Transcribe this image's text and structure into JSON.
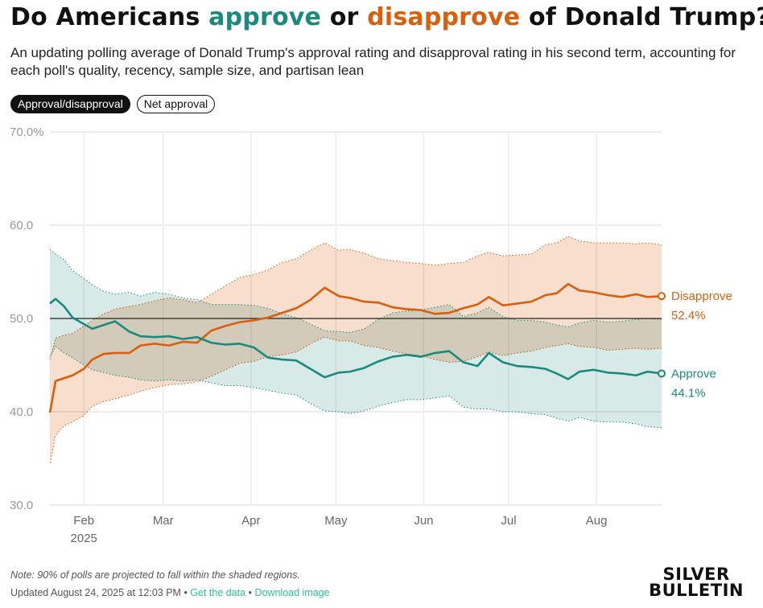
{
  "header": {
    "title_prefix": "Do Americans ",
    "title_approve": "approve",
    "title_or": " or ",
    "title_disapprove": "disapprove",
    "title_suffix": " of Donald Trump?",
    "subtitle": "An updating polling average of Donald Trump's approval rating and disapproval rating in his second term, accounting for each poll's quality, recency, sample size, and partisan lean"
  },
  "toggles": [
    {
      "label": "Approval/disapproval",
      "active": true
    },
    {
      "label": "Net approval",
      "active": false
    }
  ],
  "footer": {
    "note": "Note: 90% of polls are projected to fall within the shaded regions.",
    "updated": "Updated August 24, 2025 at 12:03 PM",
    "sep": " • ",
    "get_data": "Get the data",
    "download": "Download image"
  },
  "logo": {
    "line1": "SILVER",
    "line2": "BULLETIN"
  },
  "chart_data": {
    "type": "line",
    "ylim": [
      30,
      70
    ],
    "yticks": [
      "70.0%",
      "60.0",
      "50.0",
      "40.0",
      "30.0"
    ],
    "x_range": [
      "2025-01-20",
      "2025-08-24"
    ],
    "month_ticks": [
      {
        "label": "Feb",
        "date": "2025-02-01"
      },
      {
        "label": "Mar",
        "date": "2025-03-01"
      },
      {
        "label": "Apr",
        "date": "2025-04-01"
      },
      {
        "label": "May",
        "date": "2025-05-01"
      },
      {
        "label": "Jun",
        "date": "2025-06-01"
      },
      {
        "label": "Jul",
        "date": "2025-07-01"
      },
      {
        "label": "Aug",
        "date": "2025-08-01"
      }
    ],
    "year_label": "2025",
    "reference_line": 50,
    "colors": {
      "approve": "#1a8a7e",
      "disapprove": "#d95f0e",
      "approve_band": "#cfe5e1",
      "disapprove_band": "#f7d6c0"
    },
    "series": [
      {
        "name": "Disapprove",
        "end_label": "52.4%",
        "points": [
          [
            "2025-01-20",
            39.9,
            34.3,
            45.6
          ],
          [
            "2025-01-22",
            43.3,
            37.5,
            47.9
          ],
          [
            "2025-01-25",
            43.6,
            38.5,
            48.2
          ],
          [
            "2025-01-28",
            43.9,
            38.9,
            48.4
          ],
          [
            "2025-02-01",
            44.6,
            39.6,
            49.2
          ],
          [
            "2025-02-04",
            45.6,
            40.6,
            49.8
          ],
          [
            "2025-02-08",
            46.2,
            41.1,
            50.5
          ],
          [
            "2025-02-12",
            46.3,
            41.4,
            51.0
          ],
          [
            "2025-02-17",
            46.3,
            41.8,
            51.3
          ],
          [
            "2025-02-21",
            47.1,
            42.2,
            51.5
          ],
          [
            "2025-02-26",
            47.3,
            42.6,
            51.9
          ],
          [
            "2025-03-03",
            47.1,
            42.9,
            52.2
          ],
          [
            "2025-03-08",
            47.5,
            43.0,
            52.0
          ],
          [
            "2025-03-13",
            47.4,
            43.2,
            51.7
          ],
          [
            "2025-03-18",
            48.7,
            43.8,
            52.6
          ],
          [
            "2025-03-23",
            49.2,
            44.5,
            53.5
          ],
          [
            "2025-03-28",
            49.6,
            45.2,
            54.4
          ],
          [
            "2025-04-02",
            49.8,
            45.4,
            54.7
          ],
          [
            "2025-04-07",
            50.1,
            45.9,
            55.2
          ],
          [
            "2025-04-12",
            50.6,
            46.1,
            56.0
          ],
          [
            "2025-04-17",
            51.1,
            46.4,
            56.4
          ],
          [
            "2025-04-22",
            52.0,
            47.3,
            57.3
          ],
          [
            "2025-04-27",
            53.3,
            48.0,
            58.1
          ],
          [
            "2025-05-02",
            52.4,
            47.6,
            57.3
          ],
          [
            "2025-05-06",
            52.2,
            47.6,
            57.4
          ],
          [
            "2025-05-11",
            51.8,
            47.1,
            57.0
          ],
          [
            "2025-05-16",
            51.7,
            46.9,
            56.4
          ],
          [
            "2025-05-21",
            51.2,
            46.5,
            56.2
          ],
          [
            "2025-05-26",
            51.0,
            46.2,
            56.0
          ],
          [
            "2025-05-31",
            50.9,
            46.0,
            55.9
          ],
          [
            "2025-06-05",
            50.5,
            45.6,
            55.7
          ],
          [
            "2025-06-10",
            50.6,
            45.3,
            55.9
          ],
          [
            "2025-06-15",
            51.1,
            45.4,
            56.0
          ],
          [
            "2025-06-20",
            51.5,
            45.9,
            56.7
          ],
          [
            "2025-06-24",
            52.3,
            46.4,
            57.1
          ],
          [
            "2025-06-29",
            51.4,
            46.0,
            56.7
          ],
          [
            "2025-07-04",
            51.6,
            46.3,
            56.8
          ],
          [
            "2025-07-09",
            51.8,
            46.5,
            56.9
          ],
          [
            "2025-07-14",
            52.5,
            46.9,
            57.9
          ],
          [
            "2025-07-18",
            52.7,
            47.1,
            58.1
          ],
          [
            "2025-07-22",
            53.7,
            47.3,
            58.8
          ],
          [
            "2025-07-26",
            53.0,
            47.0,
            58.3
          ],
          [
            "2025-07-31",
            52.8,
            46.9,
            58.1
          ],
          [
            "2025-08-05",
            52.5,
            46.6,
            58.1
          ],
          [
            "2025-08-10",
            52.3,
            46.7,
            58.1
          ],
          [
            "2025-08-15",
            52.6,
            46.8,
            58.0
          ],
          [
            "2025-08-19",
            52.3,
            46.7,
            58.1
          ],
          [
            "2025-08-24",
            52.4,
            46.8,
            57.9
          ]
        ]
      },
      {
        "name": "Approve",
        "end_label": "44.1%",
        "points": [
          [
            "2025-01-20",
            51.6,
            45.8,
            57.4
          ],
          [
            "2025-01-22",
            52.1,
            47.0,
            56.9
          ],
          [
            "2025-01-25",
            51.3,
            46.3,
            56.3
          ],
          [
            "2025-01-28",
            50.1,
            45.8,
            55.1
          ],
          [
            "2025-02-01",
            49.4,
            45.0,
            54.3
          ],
          [
            "2025-02-04",
            48.9,
            44.5,
            53.6
          ],
          [
            "2025-02-08",
            49.3,
            44.2,
            52.9
          ],
          [
            "2025-02-12",
            49.7,
            43.9,
            52.6
          ],
          [
            "2025-02-17",
            48.6,
            43.7,
            52.8
          ],
          [
            "2025-02-21",
            48.1,
            43.4,
            52.4
          ],
          [
            "2025-02-26",
            48.0,
            43.3,
            52.8
          ],
          [
            "2025-03-03",
            48.1,
            43.4,
            52.6
          ],
          [
            "2025-03-08",
            47.8,
            43.3,
            52.2
          ],
          [
            "2025-03-13",
            48.0,
            43.4,
            52.0
          ],
          [
            "2025-03-18",
            47.4,
            43.1,
            51.5
          ],
          [
            "2025-03-23",
            47.2,
            42.8,
            51.5
          ],
          [
            "2025-03-28",
            47.3,
            42.8,
            51.5
          ],
          [
            "2025-04-02",
            46.9,
            42.6,
            51.4
          ],
          [
            "2025-04-07",
            45.8,
            42.3,
            51.1
          ],
          [
            "2025-04-12",
            45.6,
            42.0,
            50.5
          ],
          [
            "2025-04-17",
            45.5,
            41.8,
            50.1
          ],
          [
            "2025-04-22",
            44.6,
            40.9,
            49.4
          ],
          [
            "2025-04-27",
            43.7,
            40.1,
            48.7
          ],
          [
            "2025-05-02",
            44.2,
            40.0,
            48.6
          ],
          [
            "2025-05-06",
            44.3,
            39.8,
            48.5
          ],
          [
            "2025-05-11",
            44.7,
            40.1,
            48.9
          ],
          [
            "2025-05-16",
            45.4,
            40.6,
            49.9
          ],
          [
            "2025-05-21",
            45.9,
            41.0,
            50.6
          ],
          [
            "2025-05-26",
            46.1,
            41.3,
            50.8
          ],
          [
            "2025-05-31",
            45.9,
            41.3,
            50.9
          ],
          [
            "2025-06-05",
            46.3,
            41.5,
            51.2
          ],
          [
            "2025-06-10",
            46.5,
            41.7,
            51.5
          ],
          [
            "2025-06-15",
            45.3,
            40.5,
            50.2
          ],
          [
            "2025-06-20",
            44.9,
            40.3,
            50.6
          ],
          [
            "2025-06-24",
            46.3,
            40.3,
            51.2
          ],
          [
            "2025-06-29",
            45.3,
            40.0,
            50.2
          ],
          [
            "2025-07-04",
            44.9,
            40.0,
            49.8
          ],
          [
            "2025-07-09",
            44.8,
            39.8,
            49.8
          ],
          [
            "2025-07-14",
            44.6,
            39.7,
            49.6
          ],
          [
            "2025-07-18",
            44.1,
            39.3,
            49.3
          ],
          [
            "2025-07-22",
            43.5,
            39.0,
            49.1
          ],
          [
            "2025-07-26",
            44.3,
            39.4,
            49.5
          ],
          [
            "2025-07-31",
            44.5,
            39.0,
            49.8
          ],
          [
            "2025-08-05",
            44.2,
            38.9,
            49.6
          ],
          [
            "2025-08-10",
            44.1,
            38.9,
            49.7
          ],
          [
            "2025-08-15",
            43.9,
            38.7,
            49.9
          ],
          [
            "2025-08-19",
            44.3,
            38.4,
            50.0
          ],
          [
            "2025-08-24",
            44.1,
            38.3,
            49.9
          ]
        ]
      }
    ]
  }
}
